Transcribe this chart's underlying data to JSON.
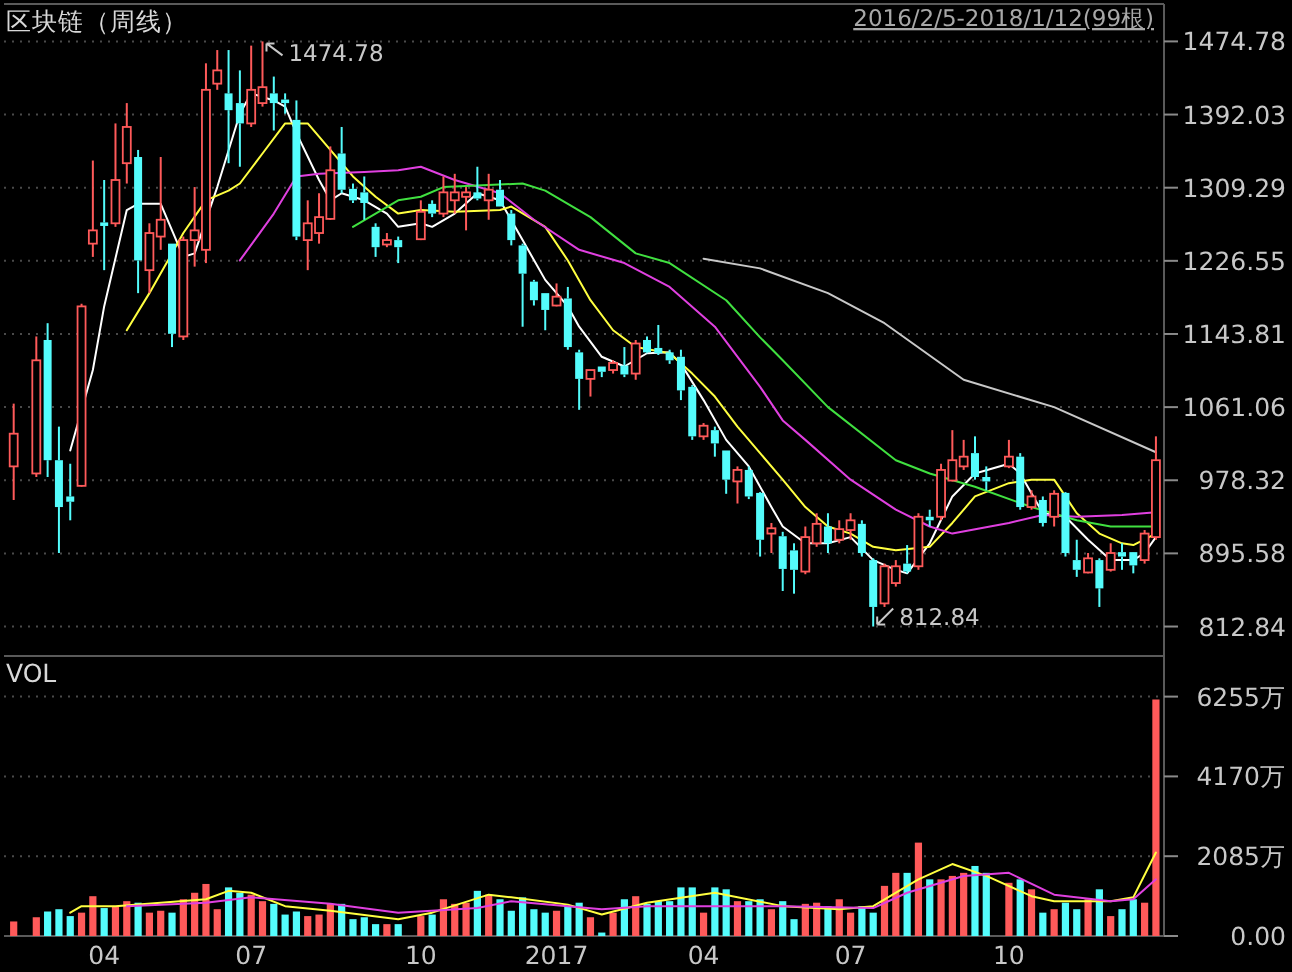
{
  "chart_data": [
    {
      "type": "candlestick",
      "title": "区块链（周线）",
      "subtitle": "2016/2/5-2018/1/12(99根)",
      "x": [
        "2016-02-05",
        "2016-02-19",
        "2016-02-26",
        "2016-03-04",
        "2016-03-11",
        "2016-03-18",
        "2016-03-25",
        "2016-04-01",
        "2016-04-08",
        "2016-04-15",
        "2016-04-22",
        "2016-04-29",
        "2016-05-06",
        "2016-05-13",
        "2016-05-20",
        "2016-05-27",
        "2016-06-03",
        "2016-06-10",
        "2016-06-17",
        "2016-06-24",
        "2016-07-01",
        "2016-07-08",
        "2016-07-15",
        "2016-07-22",
        "2016-07-29",
        "2016-08-05",
        "2016-08-12",
        "2016-08-19",
        "2016-08-26",
        "2016-09-02",
        "2016-09-09",
        "2016-09-16",
        "2016-09-23",
        "2016-09-30",
        "2016-10-14",
        "2016-10-21",
        "2016-10-28",
        "2016-11-04",
        "2016-11-11",
        "2016-11-18",
        "2016-11-25",
        "2016-12-02",
        "2016-12-09",
        "2016-12-16",
        "2016-12-23",
        "2016-12-30",
        "2017-01-06",
        "2017-01-13",
        "2017-01-20",
        "2017-01-27",
        "2017-02-03",
        "2017-02-10",
        "2017-02-17",
        "2017-02-24",
        "2017-03-03",
        "2017-03-10",
        "2017-03-17",
        "2017-03-24",
        "2017-03-31",
        "2017-04-07",
        "2017-04-14",
        "2017-04-21",
        "2017-04-28",
        "2017-05-05",
        "2017-05-12",
        "2017-05-19",
        "2017-05-26",
        "2017-06-02",
        "2017-06-09",
        "2017-06-16",
        "2017-06-23",
        "2017-06-30",
        "2017-07-07",
        "2017-07-14",
        "2017-07-21",
        "2017-07-28",
        "2017-08-04",
        "2017-08-11",
        "2017-08-18",
        "2017-08-25",
        "2017-09-01",
        "2017-09-08",
        "2017-09-15",
        "2017-09-22",
        "2017-09-29",
        "2017-10-13",
        "2017-10-20",
        "2017-10-27",
        "2017-11-03",
        "2017-11-10",
        "2017-11-17",
        "2017-11-24",
        "2017-12-01",
        "2017-12-08",
        "2017-12-15",
        "2017-12-22",
        "2017-12-29",
        "2018-01-05",
        "2018-01-12"
      ],
      "ohlc": [
        [
          994,
          1065,
          956,
          1031
        ],
        [
          986,
          1141,
          982,
          1114
        ],
        [
          1137,
          1156,
          982,
          1001
        ],
        [
          1001,
          1039,
          896,
          948
        ],
        [
          960,
          997,
          933,
          954
        ],
        [
          972,
          1178,
          971,
          1175
        ],
        [
          1246,
          1340,
          1231,
          1261
        ],
        [
          1270,
          1318,
          1216,
          1266
        ],
        [
          1269,
          1382,
          1265,
          1318
        ],
        [
          1337,
          1405,
          1314,
          1378
        ],
        [
          1344,
          1352,
          1190,
          1227
        ],
        [
          1216,
          1269,
          1190,
          1258
        ],
        [
          1254,
          1344,
          1239,
          1273
        ],
        [
          1246,
          1246,
          1129,
          1144
        ],
        [
          1141,
          1254,
          1137,
          1250
        ],
        [
          1250,
          1310,
          1220,
          1261
        ],
        [
          1239,
          1450,
          1224,
          1420
        ],
        [
          1427,
          1465,
          1420,
          1442
        ],
        [
          1416,
          1465,
          1337,
          1397
        ],
        [
          1405,
          1442,
          1333,
          1382
        ],
        [
          1382,
          1470,
          1378,
          1420
        ],
        [
          1405,
          1474.78,
          1401,
          1423
        ],
        [
          1416,
          1435,
          1374,
          1405
        ],
        [
          1409,
          1416,
          1393,
          1405
        ],
        [
          1386,
          1408,
          1250,
          1254
        ],
        [
          1250,
          1295,
          1216,
          1269
        ],
        [
          1258,
          1303,
          1246,
          1276
        ],
        [
          1274,
          1356,
          1273,
          1329
        ],
        [
          1348,
          1378,
          1303,
          1307
        ],
        [
          1308,
          1314,
          1292,
          1295
        ],
        [
          1304,
          1322,
          1273,
          1292
        ],
        [
          1265,
          1269,
          1231,
          1242
        ],
        [
          1245,
          1258,
          1242,
          1250
        ],
        [
          1250,
          1254,
          1224,
          1242
        ],
        [
          1251,
          1295,
          1250,
          1282
        ],
        [
          1291,
          1295,
          1276,
          1280
        ],
        [
          1280,
          1322,
          1276,
          1304
        ],
        [
          1295,
          1325,
          1280,
          1304
        ],
        [
          1299,
          1310,
          1261,
          1304
        ],
        [
          1304,
          1333,
          1295,
          1297
        ],
        [
          1295,
          1325,
          1273,
          1307
        ],
        [
          1307,
          1318,
          1288,
          1288
        ],
        [
          1280,
          1284,
          1244,
          1250
        ],
        [
          1244,
          1246,
          1152,
          1212
        ],
        [
          1203,
          1205,
          1176,
          1182
        ],
        [
          1190,
          1190,
          1148,
          1171
        ],
        [
          1176,
          1201,
          1175,
          1186
        ],
        [
          1184,
          1197,
          1126,
          1129
        ],
        [
          1123,
          1126,
          1058,
          1093
        ],
        [
          1093,
          1103,
          1073,
          1103
        ],
        [
          1107,
          1107,
          1095,
          1101
        ],
        [
          1103,
          1114,
          1099,
          1111
        ],
        [
          1108,
          1129,
          1095,
          1098
        ],
        [
          1099,
          1137,
          1092,
          1133
        ],
        [
          1137,
          1141,
          1122,
          1123
        ],
        [
          1128,
          1154,
          1120,
          1122
        ],
        [
          1123,
          1126,
          1110,
          1114
        ],
        [
          1118,
          1126,
          1069,
          1080
        ],
        [
          1084,
          1086,
          1024,
          1028
        ],
        [
          1028,
          1043,
          1024,
          1040
        ],
        [
          1035,
          1039,
          1005,
          1020
        ],
        [
          1012,
          1012,
          963,
          979
        ],
        [
          977,
          994,
          952,
          990
        ],
        [
          990,
          994,
          957,
          960
        ],
        [
          964,
          965,
          892,
          911
        ],
        [
          918,
          930,
          896,
          924
        ],
        [
          915,
          920,
          853,
          878
        ],
        [
          899,
          907,
          850,
          877
        ],
        [
          875,
          926,
          872,
          914
        ],
        [
          907,
          941,
          903,
          929
        ],
        [
          926,
          941,
          896,
          907
        ],
        [
          911,
          933,
          907,
          923
        ],
        [
          922,
          941,
          911,
          933
        ],
        [
          929,
          933,
          892,
          896
        ],
        [
          888,
          890,
          812.84,
          835
        ],
        [
          839,
          884,
          835,
          881
        ],
        [
          862,
          888,
          858,
          881
        ],
        [
          884,
          905,
          873,
          875
        ],
        [
          881,
          941,
          877,
          937
        ],
        [
          937,
          945,
          926,
          933
        ],
        [
          937,
          997,
          933,
          990
        ],
        [
          978,
          1035,
          977,
          1001
        ],
        [
          994,
          1024,
          990,
          1005
        ],
        [
          1009,
          1028,
          979,
          982
        ],
        [
          982,
          994,
          967,
          977
        ],
        [
          994,
          1024,
          992,
          1005
        ],
        [
          1005,
          1009,
          945,
          948
        ],
        [
          948,
          967,
          945,
          960
        ],
        [
          956,
          960,
          926,
          930
        ],
        [
          937,
          967,
          926,
          963
        ],
        [
          964,
          965,
          892,
          896
        ],
        [
          888,
          911,
          869,
          877
        ],
        [
          874,
          896,
          873,
          890
        ],
        [
          888,
          890,
          835,
          856
        ],
        [
          877,
          907,
          875,
          896
        ],
        [
          897,
          907,
          877,
          892
        ],
        [
          897,
          897,
          873,
          882
        ],
        [
          888,
          922,
          884,
          918
        ],
        [
          914,
          1028,
          911,
          1001
        ]
      ],
      "xlim": [
        "2016-01-30",
        "2018-01-17"
      ],
      "ylim": [
        779.5,
        1517.1
      ],
      "yticks": [
        812.84,
        895.58,
        978.32,
        1061.06,
        1143.81,
        1226.55,
        1309.29,
        1392.03,
        1474.78
      ],
      "tick_labels": "y",
      "grid": "y",
      "annotations": [
        {
          "text": "1474.78",
          "x": "2016-07-08",
          "y": 1474.78
        },
        {
          "text": "812.84",
          "x": "2017-07-21",
          "y": 812.84
        }
      ],
      "series": [
        {
          "type": "line",
          "color": "#ffffff",
          "x": [
            "2016-03-11",
            "2016-03-25",
            "2016-04-01",
            "2016-04-15",
            "2016-04-22",
            "2016-05-06",
            "2016-05-20",
            "2016-05-27",
            "2016-06-10",
            "2016-06-24",
            "2016-07-01",
            "2016-07-15",
            "2016-07-22",
            "2016-07-29",
            "2016-08-12",
            "2016-08-19",
            "2016-08-26",
            "2016-09-09",
            "2016-09-23",
            "2016-09-30",
            "2016-10-14",
            "2016-10-21",
            "2016-11-04",
            "2016-11-18",
            "2016-12-02",
            "2016-12-16",
            "2016-12-30",
            "2017-01-13",
            "2017-01-20",
            "2017-02-03",
            "2017-02-17",
            "2017-03-03",
            "2017-03-17",
            "2017-03-24",
            "2017-04-07",
            "2017-04-21",
            "2017-05-05",
            "2017-05-19",
            "2017-05-26",
            "2017-06-09",
            "2017-06-23",
            "2017-07-07",
            "2017-07-21",
            "2017-08-04",
            "2017-08-11",
            "2017-08-25",
            "2017-09-08",
            "2017-09-22",
            "2017-10-13",
            "2017-10-20",
            "2017-11-03",
            "2017-11-17",
            "2017-12-01",
            "2017-12-15",
            "2017-12-29",
            "2018-01-05",
            "2018-01-12"
          ],
          "values": [
            1012,
            1103,
            1175,
            1284,
            1291,
            1291,
            1231,
            1235,
            1310,
            1393,
            1416,
            1408,
            1401,
            1371,
            1318,
            1295,
            1303,
            1295,
            1280,
            1265,
            1269,
            1265,
            1280,
            1303,
            1295,
            1250,
            1205,
            1175,
            1152,
            1118,
            1107,
            1122,
            1123,
            1110,
            1069,
            1024,
            994,
            948,
            926,
            907,
            907,
            914,
            888,
            877,
            873,
            907,
            960,
            986,
            997,
            986,
            941,
            937,
            911,
            888,
            888,
            896,
            914
          ]
        },
        {
          "type": "line",
          "color": "#ffff40",
          "x": [
            "2016-04-15",
            "2016-04-29",
            "2016-05-13",
            "2016-05-20",
            "2016-06-03",
            "2016-06-17",
            "2016-06-24",
            "2016-07-08",
            "2016-07-22",
            "2016-08-05",
            "2016-08-19",
            "2016-09-02",
            "2016-09-16",
            "2016-09-30",
            "2016-10-14",
            "2016-11-04",
            "2016-12-02",
            "2016-12-09",
            "2016-12-30",
            "2017-01-13",
            "2017-01-27",
            "2017-02-10",
            "2017-02-24",
            "2017-03-17",
            "2017-03-31",
            "2017-04-14",
            "2017-04-28",
            "2017-05-12",
            "2017-05-26",
            "2017-06-09",
            "2017-06-23",
            "2017-07-07",
            "2017-07-21",
            "2017-08-04",
            "2017-08-25",
            "2017-09-08",
            "2017-09-22",
            "2017-10-13",
            "2017-10-27",
            "2017-11-10",
            "2017-11-24",
            "2017-12-08",
            "2017-12-22",
            "2017-12-29",
            "2018-01-12"
          ],
          "values": [
            1148,
            1190,
            1235,
            1258,
            1295,
            1306,
            1314,
            1348,
            1382,
            1382,
            1352,
            1322,
            1299,
            1280,
            1284,
            1282,
            1284,
            1288,
            1265,
            1227,
            1182,
            1148,
            1129,
            1122,
            1099,
            1073,
            1039,
            1009,
            979,
            948,
            926,
            918,
            903,
            899,
            903,
            930,
            960,
            975,
            979,
            979,
            941,
            918,
            907,
            905,
            918
          ]
        },
        {
          "type": "line",
          "color": "#e040e0",
          "x": [
            "2016-06-24",
            "2016-07-15",
            "2016-07-29",
            "2016-08-12",
            "2016-09-09",
            "2016-09-30",
            "2016-10-14",
            "2016-11-04",
            "2016-12-02",
            "2016-12-23",
            "2017-01-20",
            "2017-02-17",
            "2017-03-17",
            "2017-04-14",
            "2017-05-12",
            "2017-05-26",
            "2017-06-09",
            "2017-07-07",
            "2017-08-04",
            "2017-08-25",
            "2017-09-08",
            "2017-10-13",
            "2017-11-03",
            "2017-11-24",
            "2017-12-22",
            "2018-01-12"
          ],
          "values": [
            1227,
            1280,
            1322,
            1325,
            1327,
            1329,
            1333,
            1318,
            1303,
            1273,
            1239,
            1224,
            1197,
            1152,
            1084,
            1046,
            1024,
            979,
            945,
            926,
            918,
            930,
            939,
            937,
            939,
            942
          ]
        },
        {
          "type": "line",
          "color": "#40e040",
          "x": [
            "2016-09-02",
            "2016-09-30",
            "2016-10-14",
            "2016-10-28",
            "2016-12-16",
            "2016-12-30",
            "2017-01-27",
            "2017-02-24",
            "2017-03-17",
            "2017-04-21",
            "2017-05-12",
            "2017-05-26",
            "2017-06-23",
            "2017-08-04",
            "2017-08-25",
            "2017-09-22",
            "2017-10-27",
            "2017-11-24",
            "2017-12-15",
            "2018-01-12"
          ],
          "values": [
            1265,
            1295,
            1299,
            1310,
            1314,
            1306,
            1276,
            1235,
            1224,
            1182,
            1140,
            1114,
            1061,
            1001,
            986,
            971,
            948,
            933,
            926,
            926
          ]
        },
        {
          "type": "line",
          "color": "#c8c8c8",
          "x": [
            "2017-04-07",
            "2017-05-12",
            "2017-06-23",
            "2017-07-28",
            "2017-09-15",
            "2017-11-10",
            "2018-01-12"
          ],
          "values": [
            1229,
            1218,
            1190,
            1156,
            1092,
            1061,
            1010
          ]
        }
      ]
    },
    {
      "type": "bar",
      "title": "VOL",
      "x": [
        "2016-02-05",
        "2016-02-19",
        "2016-02-26",
        "2016-03-04",
        "2016-03-11",
        "2016-03-18",
        "2016-03-25",
        "2016-04-01",
        "2016-04-08",
        "2016-04-15",
        "2016-04-22",
        "2016-04-29",
        "2016-05-06",
        "2016-05-13",
        "2016-05-20",
        "2016-05-27",
        "2016-06-03",
        "2016-06-10",
        "2016-06-17",
        "2016-06-24",
        "2016-07-01",
        "2016-07-08",
        "2016-07-15",
        "2016-07-22",
        "2016-07-29",
        "2016-08-05",
        "2016-08-12",
        "2016-08-19",
        "2016-08-26",
        "2016-09-02",
        "2016-09-09",
        "2016-09-16",
        "2016-09-23",
        "2016-09-30",
        "2016-10-14",
        "2016-10-21",
        "2016-10-28",
        "2016-11-04",
        "2016-11-11",
        "2016-11-18",
        "2016-11-25",
        "2016-12-02",
        "2016-12-09",
        "2016-12-16",
        "2016-12-23",
        "2016-12-30",
        "2017-01-06",
        "2017-01-13",
        "2017-01-20",
        "2017-01-27",
        "2017-02-03",
        "2017-02-10",
        "2017-02-17",
        "2017-02-24",
        "2017-03-03",
        "2017-03-10",
        "2017-03-17",
        "2017-03-24",
        "2017-03-31",
        "2017-04-07",
        "2017-04-14",
        "2017-04-21",
        "2017-04-28",
        "2017-05-05",
        "2017-05-12",
        "2017-05-19",
        "2017-05-26",
        "2017-06-02",
        "2017-06-09",
        "2017-06-16",
        "2017-06-23",
        "2017-06-30",
        "2017-07-07",
        "2017-07-14",
        "2017-07-21",
        "2017-07-28",
        "2017-08-04",
        "2017-08-11",
        "2017-08-18",
        "2017-08-25",
        "2017-09-01",
        "2017-09-08",
        "2017-09-15",
        "2017-09-22",
        "2017-09-29",
        "2017-10-13",
        "2017-10-20",
        "2017-10-27",
        "2017-11-03",
        "2017-11-10",
        "2017-11-17",
        "2017-11-24",
        "2017-12-01",
        "2017-12-08",
        "2017-12-15",
        "2017-12-22",
        "2017-12-29",
        "2018-01-05",
        "2018-01-12"
      ],
      "values": [
        380,
        490,
        640,
        700,
        520,
        610,
        1040,
        730,
        780,
        910,
        870,
        610,
        660,
        610,
        960,
        1130,
        1360,
        700,
        1270,
        1130,
        1080,
        910,
        840,
        560,
        640,
        520,
        560,
        840,
        840,
        440,
        490,
        310,
        310,
        310,
        520,
        560,
        960,
        840,
        870,
        1180,
        1080,
        960,
        660,
        1010,
        700,
        610,
        660,
        780,
        870,
        490,
        90,
        610,
        960,
        1040,
        840,
        910,
        910,
        1270,
        1270,
        610,
        1270,
        1220,
        910,
        910,
        960,
        700,
        910,
        440,
        840,
        870,
        780,
        960,
        610,
        780,
        610,
        1310,
        1650,
        1650,
        2440,
        1480,
        1480,
        1570,
        1650,
        1830,
        1650,
        1390,
        1480,
        1220,
        610,
        700,
        870,
        700,
        960,
        1220,
        520,
        700,
        960,
        870,
        6180
      ],
      "colors": [
        "#ff5a5a",
        "#ff5a5a",
        "#54fcfc",
        "#54fcfc",
        "#54fcfc",
        "#ff5a5a",
        "#ff5a5a",
        "#54fcfc",
        "#ff5a5a",
        "#ff5a5a",
        "#54fcfc",
        "#ff5a5a",
        "#ff5a5a",
        "#54fcfc",
        "#ff5a5a",
        "#ff5a5a",
        "#ff5a5a",
        "#ff5a5a",
        "#54fcfc",
        "#54fcfc",
        "#ff5a5a",
        "#ff5a5a",
        "#54fcfc",
        "#54fcfc",
        "#54fcfc",
        "#ff5a5a",
        "#ff5a5a",
        "#ff5a5a",
        "#54fcfc",
        "#54fcfc",
        "#54fcfc",
        "#54fcfc",
        "#ff5a5a",
        "#54fcfc",
        "#ff5a5a",
        "#54fcfc",
        "#ff5a5a",
        "#ff5a5a",
        "#ff5a5a",
        "#54fcfc",
        "#ff5a5a",
        "#54fcfc",
        "#54fcfc",
        "#54fcfc",
        "#54fcfc",
        "#54fcfc",
        "#ff5a5a",
        "#54fcfc",
        "#54fcfc",
        "#ff5a5a",
        "#54fcfc",
        "#ff5a5a",
        "#54fcfc",
        "#ff5a5a",
        "#54fcfc",
        "#54fcfc",
        "#54fcfc",
        "#54fcfc",
        "#54fcfc",
        "#ff5a5a",
        "#54fcfc",
        "#54fcfc",
        "#ff5a5a",
        "#54fcfc",
        "#54fcfc",
        "#ff5a5a",
        "#54fcfc",
        "#54fcfc",
        "#ff5a5a",
        "#ff5a5a",
        "#54fcfc",
        "#ff5a5a",
        "#ff5a5a",
        "#54fcfc",
        "#54fcfc",
        "#ff5a5a",
        "#ff5a5a",
        "#54fcfc",
        "#ff5a5a",
        "#54fcfc",
        "#ff5a5a",
        "#ff5a5a",
        "#ff5a5a",
        "#54fcfc",
        "#54fcfc",
        "#ff5a5a",
        "#54fcfc",
        "#ff5a5a",
        "#54fcfc",
        "#ff5a5a",
        "#54fcfc",
        "#54fcfc",
        "#ff5a5a",
        "#54fcfc",
        "#ff5a5a",
        "#54fcfc",
        "#54fcfc",
        "#ff5a5a",
        "#ff5a5a"
      ],
      "xlim": [
        "2016-01-30",
        "2018-01-17"
      ],
      "ylim": [
        0,
        7316
      ],
      "yticks": [
        {
          "value": 0,
          "label": "0.00"
        },
        {
          "value": 2085,
          "label": "2085万"
        },
        {
          "value": 4170,
          "label": "4170万"
        },
        {
          "value": 6255,
          "label": "6255万"
        }
      ],
      "xticks": [
        {
          "value": "2016-04-01",
          "label": "04"
        },
        {
          "value": "2016-07-01",
          "label": "07"
        },
        {
          "value": "2016-10-14",
          "label": "10"
        },
        {
          "value": "2017-01-06",
          "label": "2017"
        },
        {
          "value": "2017-04-07",
          "label": "04"
        },
        {
          "value": "2017-07-07",
          "label": "07"
        },
        {
          "value": "2017-10-13",
          "label": "10"
        }
      ],
      "grid": "y",
      "series": [
        {
          "type": "line",
          "color": "#ffff40",
          "x": [
            "2016-03-11",
            "2016-03-18",
            "2016-04-08",
            "2016-06-03",
            "2016-06-17",
            "2016-07-01",
            "2016-07-22",
            "2016-08-19",
            "2016-09-30",
            "2016-10-21",
            "2016-11-25",
            "2016-12-09",
            "2017-01-13",
            "2017-02-03",
            "2017-03-03",
            "2017-04-14",
            "2017-05-26",
            "2017-06-30",
            "2017-07-21",
            "2017-08-18",
            "2017-09-08",
            "2017-09-29",
            "2017-10-27",
            "2017-11-10",
            "2017-12-15",
            "2017-12-29",
            "2018-01-12"
          ],
          "values": [
            610,
            780,
            780,
            960,
            1180,
            1130,
            780,
            660,
            440,
            610,
            1080,
            1010,
            820,
            560,
            870,
            1130,
            780,
            700,
            780,
            1480,
            1880,
            1570,
            1040,
            910,
            910,
            1010,
            2180
          ]
        },
        {
          "type": "line",
          "color": "#e040e0",
          "x": [
            "2016-04-15",
            "2016-06-03",
            "2016-07-01",
            "2016-08-19",
            "2016-09-30",
            "2016-11-18",
            "2016-12-09",
            "2017-02-03",
            "2017-03-03",
            "2017-03-24",
            "2017-05-26",
            "2017-07-21",
            "2017-08-11",
            "2017-09-15",
            "2017-10-13",
            "2017-11-10",
            "2017-12-15",
            "2017-12-29",
            "2018-01-12"
          ],
          "values": [
            780,
            870,
            1010,
            840,
            610,
            730,
            910,
            700,
            780,
            780,
            780,
            730,
            1130,
            1570,
            1650,
            1080,
            910,
            960,
            1480
          ]
        }
      ]
    }
  ]
}
